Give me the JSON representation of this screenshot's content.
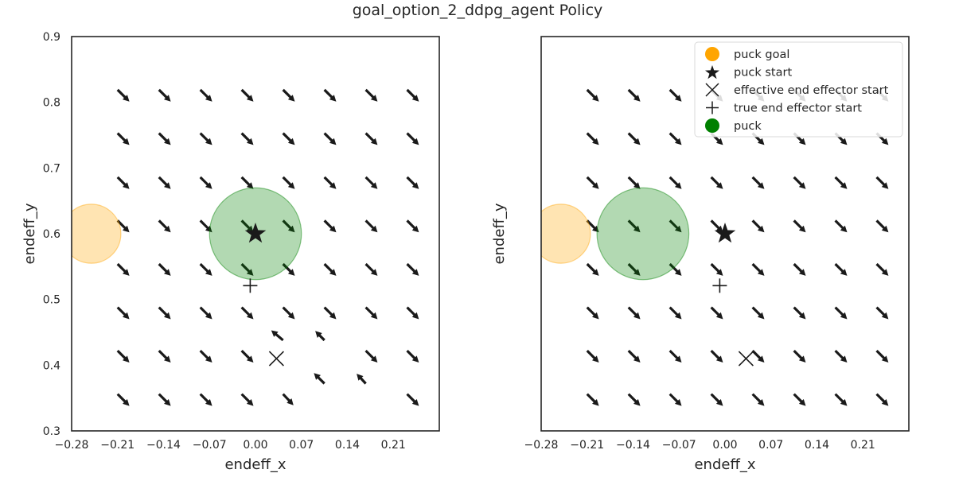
{
  "colors": {
    "arrow": "#1a1a1a",
    "arrow_faded": "#c8c8c8",
    "goal_fill": "#ffa500",
    "puck_fill": "#008000",
    "spine": "#262626",
    "text": "#262626"
  },
  "chart_data": {
    "type": "quiver",
    "title": "goal_option_2_ddpg_agent Policy",
    "xticks": [
      -0.28,
      -0.21,
      -0.14,
      -0.07,
      0.0,
      0.07,
      0.14,
      0.21
    ],
    "xtick_labels": [
      "−0.28",
      "−0.21",
      "−0.14",
      "−0.07",
      "0.00",
      "0.07",
      "0.14",
      "0.21"
    ],
    "yticks": [
      0.3,
      0.4,
      0.5,
      0.6,
      0.7,
      0.8,
      0.9
    ],
    "ytick_labels": [
      "0.3",
      "0.4",
      "0.5",
      "0.6",
      "0.7",
      "0.8",
      "0.9"
    ],
    "legend": {
      "placement": "upper-right",
      "entries": [
        {
          "label": "puck goal",
          "marker": "circle",
          "color": "#ffa500"
        },
        {
          "label": "puck start",
          "marker": "star",
          "color": "#1a1a1a"
        },
        {
          "label": "effective end effector start",
          "marker": "x",
          "color": "#1a1a1a"
        },
        {
          "label": "true end effector start",
          "marker": "plus",
          "color": "#1a1a1a"
        },
        {
          "label": "puck",
          "marker": "circle",
          "color": "#008000"
        }
      ]
    },
    "panels": [
      {
        "xlabel": "endeff_x",
        "ylabel": "endeff_y",
        "xlim": [
          -0.28,
          0.28
        ],
        "ylim": [
          0.3,
          0.9
        ],
        "show_yticks": true,
        "show_legend": false,
        "grid_x": [
          -0.21,
          -0.147,
          -0.084,
          -0.021,
          0.042,
          0.105,
          0.168,
          0.231
        ],
        "grid_y": [
          0.356,
          0.422,
          0.488,
          0.554,
          0.62,
          0.686,
          0.753,
          0.819
        ],
        "arrows": [
          {
            "x": -0.21,
            "y": 0.356,
            "dx": 0.018,
            "dy": -0.018
          },
          {
            "x": -0.147,
            "y": 0.356,
            "dx": 0.018,
            "dy": -0.018
          },
          {
            "x": -0.084,
            "y": 0.356,
            "dx": 0.018,
            "dy": -0.018
          },
          {
            "x": -0.021,
            "y": 0.356,
            "dx": 0.018,
            "dy": -0.018
          },
          {
            "x": 0.042,
            "y": 0.356,
            "dx": 0.016,
            "dy": -0.017
          },
          {
            "x": 0.105,
            "y": 0.372,
            "dx": -0.016,
            "dy": 0.016
          },
          {
            "x": 0.168,
            "y": 0.372,
            "dx": -0.014,
            "dy": 0.015
          },
          {
            "x": 0.231,
            "y": 0.356,
            "dx": 0.018,
            "dy": -0.018
          },
          {
            "x": -0.21,
            "y": 0.422,
            "dx": 0.018,
            "dy": -0.018
          },
          {
            "x": -0.147,
            "y": 0.422,
            "dx": 0.018,
            "dy": -0.018
          },
          {
            "x": -0.084,
            "y": 0.422,
            "dx": 0.018,
            "dy": -0.018
          },
          {
            "x": -0.021,
            "y": 0.422,
            "dx": 0.018,
            "dy": -0.018
          },
          {
            "x": 0.042,
            "y": 0.438,
            "dx": -0.018,
            "dy": 0.015
          },
          {
            "x": 0.105,
            "y": 0.438,
            "dx": -0.014,
            "dy": 0.014
          },
          {
            "x": 0.168,
            "y": 0.422,
            "dx": 0.018,
            "dy": -0.018
          },
          {
            "x": 0.231,
            "y": 0.422,
            "dx": 0.018,
            "dy": -0.018
          },
          {
            "x": -0.21,
            "y": 0.488,
            "dx": 0.018,
            "dy": -0.018
          },
          {
            "x": -0.147,
            "y": 0.488,
            "dx": 0.018,
            "dy": -0.018
          },
          {
            "x": -0.084,
            "y": 0.488,
            "dx": 0.018,
            "dy": -0.018
          },
          {
            "x": -0.021,
            "y": 0.488,
            "dx": 0.018,
            "dy": -0.018
          },
          {
            "x": 0.042,
            "y": 0.488,
            "dx": 0.018,
            "dy": -0.018
          },
          {
            "x": 0.105,
            "y": 0.488,
            "dx": 0.018,
            "dy": -0.018
          },
          {
            "x": 0.168,
            "y": 0.488,
            "dx": 0.018,
            "dy": -0.018
          },
          {
            "x": 0.231,
            "y": 0.488,
            "dx": 0.018,
            "dy": -0.018
          },
          {
            "x": -0.21,
            "y": 0.554,
            "dx": 0.018,
            "dy": -0.018
          },
          {
            "x": -0.147,
            "y": 0.554,
            "dx": 0.018,
            "dy": -0.018
          },
          {
            "x": -0.084,
            "y": 0.554,
            "dx": 0.018,
            "dy": -0.018
          },
          {
            "x": -0.021,
            "y": 0.554,
            "dx": 0.018,
            "dy": -0.018
          },
          {
            "x": 0.042,
            "y": 0.554,
            "dx": 0.018,
            "dy": -0.018
          },
          {
            "x": 0.105,
            "y": 0.554,
            "dx": 0.018,
            "dy": -0.018
          },
          {
            "x": 0.168,
            "y": 0.554,
            "dx": 0.018,
            "dy": -0.018
          },
          {
            "x": 0.231,
            "y": 0.554,
            "dx": 0.018,
            "dy": -0.018
          },
          {
            "x": -0.21,
            "y": 0.62,
            "dx": 0.018,
            "dy": -0.018
          },
          {
            "x": -0.147,
            "y": 0.62,
            "dx": 0.018,
            "dy": -0.018
          },
          {
            "x": -0.084,
            "y": 0.62,
            "dx": 0.018,
            "dy": -0.018
          },
          {
            "x": -0.021,
            "y": 0.62,
            "dx": 0.018,
            "dy": -0.018
          },
          {
            "x": 0.042,
            "y": 0.62,
            "dx": 0.018,
            "dy": -0.018
          },
          {
            "x": 0.105,
            "y": 0.62,
            "dx": 0.018,
            "dy": -0.018
          },
          {
            "x": 0.168,
            "y": 0.62,
            "dx": 0.018,
            "dy": -0.018
          },
          {
            "x": 0.231,
            "y": 0.62,
            "dx": 0.018,
            "dy": -0.018
          },
          {
            "x": -0.21,
            "y": 0.686,
            "dx": 0.018,
            "dy": -0.018
          },
          {
            "x": -0.147,
            "y": 0.686,
            "dx": 0.018,
            "dy": -0.018
          },
          {
            "x": -0.084,
            "y": 0.686,
            "dx": 0.018,
            "dy": -0.018
          },
          {
            "x": -0.021,
            "y": 0.686,
            "dx": 0.018,
            "dy": -0.018
          },
          {
            "x": 0.042,
            "y": 0.686,
            "dx": 0.018,
            "dy": -0.018
          },
          {
            "x": 0.105,
            "y": 0.686,
            "dx": 0.018,
            "dy": -0.018
          },
          {
            "x": 0.168,
            "y": 0.686,
            "dx": 0.018,
            "dy": -0.018
          },
          {
            "x": 0.231,
            "y": 0.686,
            "dx": 0.018,
            "dy": -0.018
          },
          {
            "x": -0.21,
            "y": 0.753,
            "dx": 0.018,
            "dy": -0.018
          },
          {
            "x": -0.147,
            "y": 0.753,
            "dx": 0.018,
            "dy": -0.018
          },
          {
            "x": -0.084,
            "y": 0.753,
            "dx": 0.018,
            "dy": -0.018
          },
          {
            "x": -0.021,
            "y": 0.753,
            "dx": 0.018,
            "dy": -0.018
          },
          {
            "x": 0.042,
            "y": 0.753,
            "dx": 0.018,
            "dy": -0.018
          },
          {
            "x": 0.105,
            "y": 0.753,
            "dx": 0.018,
            "dy": -0.018
          },
          {
            "x": 0.168,
            "y": 0.753,
            "dx": 0.018,
            "dy": -0.018
          },
          {
            "x": 0.231,
            "y": 0.753,
            "dx": 0.018,
            "dy": -0.018
          },
          {
            "x": -0.21,
            "y": 0.819,
            "dx": 0.018,
            "dy": -0.018
          },
          {
            "x": -0.147,
            "y": 0.819,
            "dx": 0.018,
            "dy": -0.018
          },
          {
            "x": -0.084,
            "y": 0.819,
            "dx": 0.018,
            "dy": -0.018
          },
          {
            "x": -0.021,
            "y": 0.819,
            "dx": 0.018,
            "dy": -0.018
          },
          {
            "x": 0.042,
            "y": 0.819,
            "dx": 0.018,
            "dy": -0.018
          },
          {
            "x": 0.105,
            "y": 0.819,
            "dx": 0.018,
            "dy": -0.018
          },
          {
            "x": 0.168,
            "y": 0.819,
            "dx": 0.018,
            "dy": -0.018
          },
          {
            "x": 0.231,
            "y": 0.819,
            "dx": 0.018,
            "dy": -0.018
          }
        ],
        "puck_goal": {
          "x": -0.25,
          "y": 0.6,
          "r": 0.045
        },
        "puck": {
          "x": 0.0,
          "y": 0.6,
          "r": 0.07
        },
        "puck_start": {
          "x": 0.0,
          "y": 0.6
        },
        "effective_ee_start": {
          "x": 0.032,
          "y": 0.41
        },
        "true_ee_start": {
          "x": -0.008,
          "y": 0.521
        }
      },
      {
        "xlabel": "endeff_x",
        "ylabel": "endeff_y",
        "xlim": [
          -0.28,
          0.28
        ],
        "ylim": [
          0.3,
          0.9
        ],
        "show_yticks": false,
        "show_legend": true,
        "grid_x": [
          -0.21,
          -0.147,
          -0.084,
          -0.021,
          0.042,
          0.105,
          0.168,
          0.231
        ],
        "grid_y": [
          0.356,
          0.422,
          0.488,
          0.554,
          0.62,
          0.686,
          0.753,
          0.819
        ],
        "arrows": [
          {
            "x": -0.21,
            "y": 0.356,
            "dx": 0.018,
            "dy": -0.018
          },
          {
            "x": -0.147,
            "y": 0.356,
            "dx": 0.018,
            "dy": -0.018
          },
          {
            "x": -0.084,
            "y": 0.356,
            "dx": 0.018,
            "dy": -0.018
          },
          {
            "x": -0.021,
            "y": 0.356,
            "dx": 0.018,
            "dy": -0.018
          },
          {
            "x": 0.042,
            "y": 0.356,
            "dx": 0.018,
            "dy": -0.018
          },
          {
            "x": 0.105,
            "y": 0.356,
            "dx": 0.018,
            "dy": -0.018
          },
          {
            "x": 0.168,
            "y": 0.356,
            "dx": 0.018,
            "dy": -0.018
          },
          {
            "x": 0.231,
            "y": 0.356,
            "dx": 0.018,
            "dy": -0.018
          },
          {
            "x": -0.21,
            "y": 0.422,
            "dx": 0.018,
            "dy": -0.018
          },
          {
            "x": -0.147,
            "y": 0.422,
            "dx": 0.018,
            "dy": -0.018
          },
          {
            "x": -0.084,
            "y": 0.422,
            "dx": 0.018,
            "dy": -0.018
          },
          {
            "x": -0.021,
            "y": 0.422,
            "dx": 0.018,
            "dy": -0.018
          },
          {
            "x": 0.042,
            "y": 0.422,
            "dx": 0.018,
            "dy": -0.018
          },
          {
            "x": 0.105,
            "y": 0.422,
            "dx": 0.018,
            "dy": -0.018
          },
          {
            "x": 0.168,
            "y": 0.422,
            "dx": 0.018,
            "dy": -0.018
          },
          {
            "x": 0.231,
            "y": 0.422,
            "dx": 0.018,
            "dy": -0.018
          },
          {
            "x": -0.21,
            "y": 0.488,
            "dx": 0.018,
            "dy": -0.018
          },
          {
            "x": -0.147,
            "y": 0.488,
            "dx": 0.018,
            "dy": -0.018
          },
          {
            "x": -0.084,
            "y": 0.488,
            "dx": 0.018,
            "dy": -0.018
          },
          {
            "x": -0.021,
            "y": 0.488,
            "dx": 0.018,
            "dy": -0.018
          },
          {
            "x": 0.042,
            "y": 0.488,
            "dx": 0.018,
            "dy": -0.018
          },
          {
            "x": 0.105,
            "y": 0.488,
            "dx": 0.018,
            "dy": -0.018
          },
          {
            "x": 0.168,
            "y": 0.488,
            "dx": 0.018,
            "dy": -0.018
          },
          {
            "x": 0.231,
            "y": 0.488,
            "dx": 0.018,
            "dy": -0.018
          },
          {
            "x": -0.21,
            "y": 0.554,
            "dx": 0.018,
            "dy": -0.018
          },
          {
            "x": -0.147,
            "y": 0.554,
            "dx": 0.018,
            "dy": -0.018
          },
          {
            "x": -0.084,
            "y": 0.554,
            "dx": 0.018,
            "dy": -0.018
          },
          {
            "x": -0.021,
            "y": 0.554,
            "dx": 0.018,
            "dy": -0.018
          },
          {
            "x": 0.042,
            "y": 0.554,
            "dx": 0.018,
            "dy": -0.018
          },
          {
            "x": 0.105,
            "y": 0.554,
            "dx": 0.018,
            "dy": -0.018
          },
          {
            "x": 0.168,
            "y": 0.554,
            "dx": 0.018,
            "dy": -0.018
          },
          {
            "x": 0.231,
            "y": 0.554,
            "dx": 0.018,
            "dy": -0.018
          },
          {
            "x": -0.21,
            "y": 0.62,
            "dx": 0.018,
            "dy": -0.018
          },
          {
            "x": -0.147,
            "y": 0.62,
            "dx": 0.018,
            "dy": -0.018
          },
          {
            "x": -0.084,
            "y": 0.62,
            "dx": 0.018,
            "dy": -0.018
          },
          {
            "x": -0.021,
            "y": 0.62,
            "dx": 0.018,
            "dy": -0.018
          },
          {
            "x": 0.042,
            "y": 0.62,
            "dx": 0.018,
            "dy": -0.018
          },
          {
            "x": 0.105,
            "y": 0.62,
            "dx": 0.018,
            "dy": -0.018
          },
          {
            "x": 0.168,
            "y": 0.62,
            "dx": 0.018,
            "dy": -0.018
          },
          {
            "x": 0.231,
            "y": 0.62,
            "dx": 0.018,
            "dy": -0.018
          },
          {
            "x": -0.21,
            "y": 0.686,
            "dx": 0.018,
            "dy": -0.018
          },
          {
            "x": -0.147,
            "y": 0.686,
            "dx": 0.018,
            "dy": -0.018
          },
          {
            "x": -0.084,
            "y": 0.686,
            "dx": 0.018,
            "dy": -0.018
          },
          {
            "x": -0.021,
            "y": 0.686,
            "dx": 0.018,
            "dy": -0.018
          },
          {
            "x": 0.042,
            "y": 0.686,
            "dx": 0.018,
            "dy": -0.018
          },
          {
            "x": 0.105,
            "y": 0.686,
            "dx": 0.018,
            "dy": -0.018
          },
          {
            "x": 0.168,
            "y": 0.686,
            "dx": 0.018,
            "dy": -0.018
          },
          {
            "x": 0.231,
            "y": 0.686,
            "dx": 0.018,
            "dy": -0.018
          },
          {
            "x": -0.21,
            "y": 0.753,
            "dx": 0.018,
            "dy": -0.018
          },
          {
            "x": -0.147,
            "y": 0.753,
            "dx": 0.018,
            "dy": -0.018
          },
          {
            "x": -0.084,
            "y": 0.753,
            "dx": 0.018,
            "dy": -0.018
          },
          {
            "x": -0.021,
            "y": 0.753,
            "dx": 0.018,
            "dy": -0.018
          },
          {
            "x": 0.042,
            "y": 0.753,
            "dx": 0.018,
            "dy": -0.018
          },
          {
            "x": 0.105,
            "y": 0.753,
            "dx": 0.018,
            "dy": -0.018
          },
          {
            "x": 0.168,
            "y": 0.753,
            "dx": 0.018,
            "dy": -0.018
          },
          {
            "x": 0.231,
            "y": 0.753,
            "dx": 0.018,
            "dy": -0.018
          },
          {
            "x": -0.21,
            "y": 0.819,
            "dx": 0.018,
            "dy": -0.018
          },
          {
            "x": -0.147,
            "y": 0.819,
            "dx": 0.018,
            "dy": -0.018
          },
          {
            "x": -0.084,
            "y": 0.819,
            "dx": 0.018,
            "dy": -0.018
          },
          {
            "x": -0.021,
            "y": 0.819,
            "dx": 0.018,
            "dy": -0.018
          },
          {
            "x": 0.042,
            "y": 0.819,
            "dx": 0.018,
            "dy": -0.018
          },
          {
            "x": 0.105,
            "y": 0.819,
            "dx": 0.018,
            "dy": -0.018
          },
          {
            "x": 0.168,
            "y": 0.819,
            "dx": 0.018,
            "dy": -0.018
          },
          {
            "x": 0.231,
            "y": 0.819,
            "dx": 0.018,
            "dy": -0.018
          }
        ],
        "puck_goal": {
          "x": -0.25,
          "y": 0.6,
          "r": 0.045
        },
        "puck": {
          "x": -0.125,
          "y": 0.6,
          "r": 0.07
        },
        "puck_start": {
          "x": 0.0,
          "y": 0.6
        },
        "effective_ee_start": {
          "x": 0.032,
          "y": 0.41
        },
        "true_ee_start": {
          "x": -0.008,
          "y": 0.521
        }
      }
    ]
  }
}
